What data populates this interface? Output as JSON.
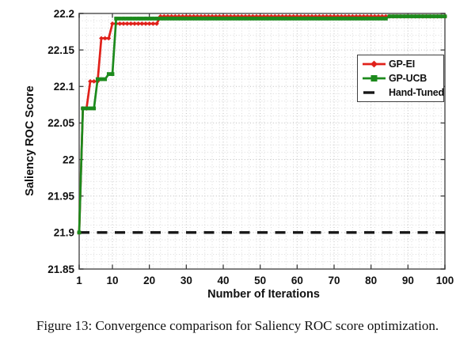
{
  "figure": {
    "caption": "Figure 13: Convergence comparison for Saliency ROC score optimization."
  },
  "chart_data": {
    "type": "line",
    "title": "",
    "xlabel": "Number of Iterations",
    "ylabel": "Saliency ROC Score",
    "xlim": [
      1,
      100
    ],
    "ylim": [
      21.85,
      22.2
    ],
    "x_ticks": [
      1,
      10,
      20,
      30,
      40,
      50,
      60,
      70,
      80,
      90,
      100
    ],
    "x_tick_labels": [
      "1",
      "10",
      "20",
      "30",
      "40",
      "50",
      "60",
      "70",
      "80",
      "90",
      "100"
    ],
    "y_ticks": [
      21.85,
      21.9,
      21.95,
      22,
      22.05,
      22.1,
      22.15,
      22.2
    ],
    "y_tick_labels": [
      "21.85",
      "21.9",
      "21.95",
      "22",
      "22.05",
      "22.1",
      "22.15",
      "22.2"
    ],
    "grid": {
      "major": "dotted",
      "minor": "dotted",
      "minor_x_step": 2,
      "minor_y_step": 0.01,
      "major_color": "#bdbdbd",
      "minor_color": "#dadada"
    },
    "axis_color": "#6a6a6a",
    "text_color": "#111111",
    "legend": {
      "position": "upper-right",
      "items": [
        {
          "label": "GP-EI"
        },
        {
          "label": "GP-UCB"
        },
        {
          "label": "Hand-Tuned"
        }
      ]
    },
    "series": [
      {
        "name": "GP-EI",
        "color": "#e0211a",
        "marker": "diamond",
        "steps_from_iteration": [
          [
            1,
            21.9
          ],
          [
            2,
            22.07
          ],
          [
            4,
            22.107
          ],
          [
            7,
            22.166
          ],
          [
            10,
            22.186
          ],
          [
            23,
            22.196
          ]
        ]
      },
      {
        "name": "GP-UCB",
        "color": "#1c8a1c",
        "marker": "square",
        "steps_from_iteration": [
          [
            1,
            21.9
          ],
          [
            2,
            22.07
          ],
          [
            6,
            22.11
          ],
          [
            9,
            22.117
          ],
          [
            11,
            22.193
          ],
          [
            85,
            22.196
          ]
        ]
      }
    ],
    "reference_line": {
      "name": "Hand-Tuned",
      "value": 21.9,
      "color": "#161616",
      "style": "dashed"
    }
  }
}
